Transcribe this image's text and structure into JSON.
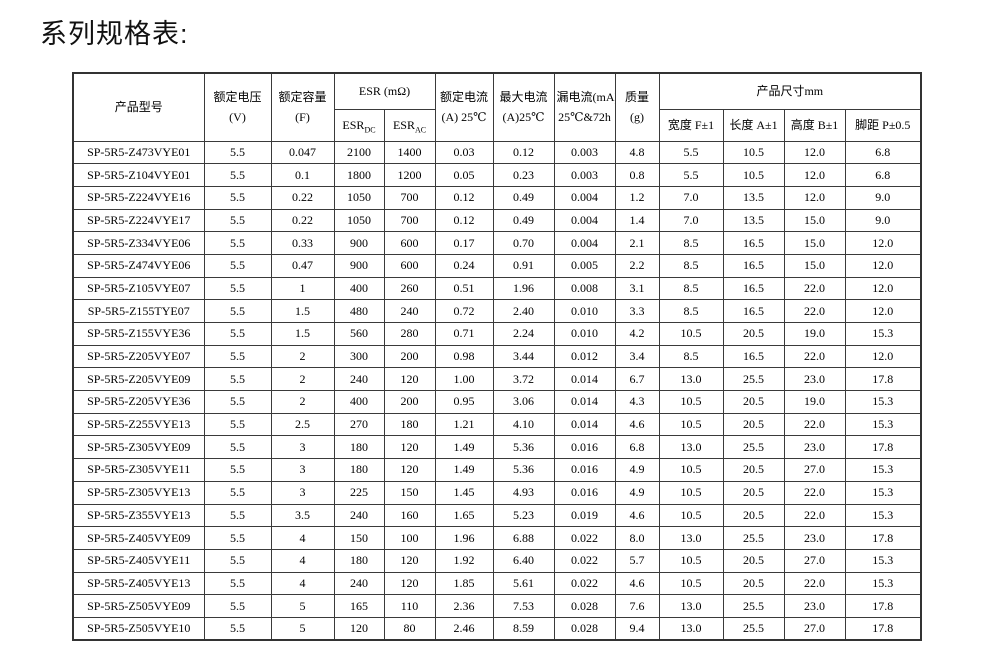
{
  "page_title": "系列规格表:",
  "table": {
    "header": {
      "model": "产品型号",
      "voltage": {
        "l1": "额定电压",
        "l2": "(V)"
      },
      "capacity": {
        "l1": "额定容量",
        "l2": "(F)"
      },
      "esr_group": "ESR (mΩ)",
      "esr_dc": {
        "base": "ESR",
        "sub": "DC"
      },
      "esr_ac": {
        "base": "ESR",
        "sub": "AC"
      },
      "rated_current": {
        "l1": "额定电流",
        "l2": "(A) 25℃"
      },
      "max_current": {
        "l1": "最大电流",
        "l2": "(A)25℃"
      },
      "leakage_current": {
        "l1": "漏电流(mA)",
        "l2": "25℃&72h"
      },
      "mass": {
        "l1": "质量",
        "l2": "(g)"
      },
      "dimensions_group": "产品尺寸mm",
      "dim_width": "宽度 F±1",
      "dim_length": "长度 A±1",
      "dim_height": "高度 B±1",
      "dim_pitch": "脚距 P±0.5"
    },
    "rows": [
      [
        "SP-5R5-Z473VYE01",
        "5.5",
        "0.047",
        "2100",
        "1400",
        "0.03",
        "0.12",
        "0.003",
        "4.8",
        "5.5",
        "10.5",
        "12.0",
        "6.8"
      ],
      [
        "SP-5R5-Z104VYE01",
        "5.5",
        "0.1",
        "1800",
        "1200",
        "0.05",
        "0.23",
        "0.003",
        "0.8",
        "5.5",
        "10.5",
        "12.0",
        "6.8"
      ],
      [
        "SP-5R5-Z224VYE16",
        "5.5",
        "0.22",
        "1050",
        "700",
        "0.12",
        "0.49",
        "0.004",
        "1.2",
        "7.0",
        "13.5",
        "12.0",
        "9.0"
      ],
      [
        "SP-5R5-Z224VYE17",
        "5.5",
        "0.22",
        "1050",
        "700",
        "0.12",
        "0.49",
        "0.004",
        "1.4",
        "7.0",
        "13.5",
        "15.0",
        "9.0"
      ],
      [
        "SP-5R5-Z334VYE06",
        "5.5",
        "0.33",
        "900",
        "600",
        "0.17",
        "0.70",
        "0.004",
        "2.1",
        "8.5",
        "16.5",
        "15.0",
        "12.0"
      ],
      [
        "SP-5R5-Z474VYE06",
        "5.5",
        "0.47",
        "900",
        "600",
        "0.24",
        "0.91",
        "0.005",
        "2.2",
        "8.5",
        "16.5",
        "15.0",
        "12.0"
      ],
      [
        "SP-5R5-Z105VYE07",
        "5.5",
        "1",
        "400",
        "260",
        "0.51",
        "1.96",
        "0.008",
        "3.1",
        "8.5",
        "16.5",
        "22.0",
        "12.0"
      ],
      [
        "SP-5R5-Z155TYE07",
        "5.5",
        "1.5",
        "480",
        "240",
        "0.72",
        "2.40",
        "0.010",
        "3.3",
        "8.5",
        "16.5",
        "22.0",
        "12.0"
      ],
      [
        "SP-5R5-Z155VYE36",
        "5.5",
        "1.5",
        "560",
        "280",
        "0.71",
        "2.24",
        "0.010",
        "4.2",
        "10.5",
        "20.5",
        "19.0",
        "15.3"
      ],
      [
        "SP-5R5-Z205VYE07",
        "5.5",
        "2",
        "300",
        "200",
        "0.98",
        "3.44",
        "0.012",
        "3.4",
        "8.5",
        "16.5",
        "22.0",
        "12.0"
      ],
      [
        "SP-5R5-Z205VYE09",
        "5.5",
        "2",
        "240",
        "120",
        "1.00",
        "3.72",
        "0.014",
        "6.7",
        "13.0",
        "25.5",
        "23.0",
        "17.8"
      ],
      [
        "SP-5R5-Z205VYE36",
        "5.5",
        "2",
        "400",
        "200",
        "0.95",
        "3.06",
        "0.014",
        "4.3",
        "10.5",
        "20.5",
        "19.0",
        "15.3"
      ],
      [
        "SP-5R5-Z255VYE13",
        "5.5",
        "2.5",
        "270",
        "180",
        "1.21",
        "4.10",
        "0.014",
        "4.6",
        "10.5",
        "20.5",
        "22.0",
        "15.3"
      ],
      [
        "SP-5R5-Z305VYE09",
        "5.5",
        "3",
        "180",
        "120",
        "1.49",
        "5.36",
        "0.016",
        "6.8",
        "13.0",
        "25.5",
        "23.0",
        "17.8"
      ],
      [
        "SP-5R5-Z305VYE11",
        "5.5",
        "3",
        "180",
        "120",
        "1.49",
        "5.36",
        "0.016",
        "4.9",
        "10.5",
        "20.5",
        "27.0",
        "15.3"
      ],
      [
        "SP-5R5-Z305VYE13",
        "5.5",
        "3",
        "225",
        "150",
        "1.45",
        "4.93",
        "0.016",
        "4.9",
        "10.5",
        "20.5",
        "22.0",
        "15.3"
      ],
      [
        "SP-5R5-Z355VYE13",
        "5.5",
        "3.5",
        "240",
        "160",
        "1.65",
        "5.23",
        "0.019",
        "4.6",
        "10.5",
        "20.5",
        "22.0",
        "15.3"
      ],
      [
        "SP-5R5-Z405VYE09",
        "5.5",
        "4",
        "150",
        "100",
        "1.96",
        "6.88",
        "0.022",
        "8.0",
        "13.0",
        "25.5",
        "23.0",
        "17.8"
      ],
      [
        "SP-5R5-Z405VYE11",
        "5.5",
        "4",
        "180",
        "120",
        "1.92",
        "6.40",
        "0.022",
        "5.7",
        "10.5",
        "20.5",
        "27.0",
        "15.3"
      ],
      [
        "SP-5R5-Z405VYE13",
        "5.5",
        "4",
        "240",
        "120",
        "1.85",
        "5.61",
        "0.022",
        "4.6",
        "10.5",
        "20.5",
        "22.0",
        "15.3"
      ],
      [
        "SP-5R5-Z505VYE09",
        "5.5",
        "5",
        "165",
        "110",
        "2.36",
        "7.53",
        "0.028",
        "7.6",
        "13.0",
        "25.5",
        "23.0",
        "17.8"
      ],
      [
        "SP-5R5-Z505VYE10",
        "5.5",
        "5",
        "120",
        "80",
        "2.46",
        "8.59",
        "0.028",
        "9.4",
        "13.0",
        "25.5",
        "27.0",
        "17.8"
      ]
    ]
  }
}
